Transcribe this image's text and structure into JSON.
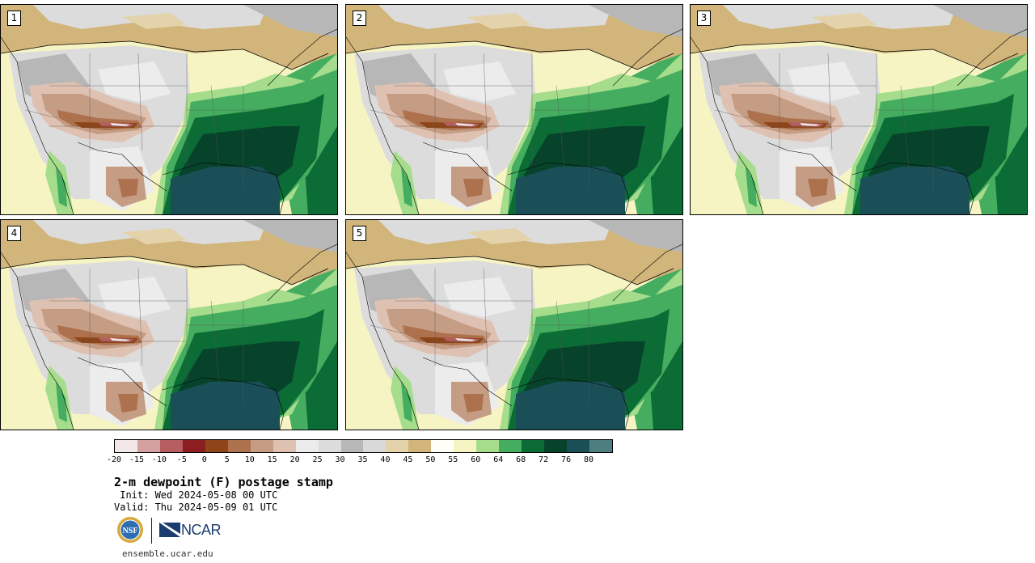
{
  "panels": [
    {
      "number": "1"
    },
    {
      "number": "2"
    },
    {
      "number": "3"
    },
    {
      "number": "4"
    },
    {
      "number": "5"
    }
  ],
  "colorbar": {
    "colors": [
      "#f3e8e8",
      "#d5a0a0",
      "#b55d60",
      "#8c1e22",
      "#8f4517",
      "#ad714e",
      "#c59c84",
      "#dfc1b2",
      "#ececec",
      "#dcdcdc",
      "#b7b7b7",
      "#d9d9d9",
      "#e4d3aa",
      "#d1b57a",
      "#fffff8",
      "#f7f4c4",
      "#a5dd8c",
      "#45ad5f",
      "#0c6c35",
      "#07432a",
      "#1a4f58",
      "#4f7e80"
    ],
    "labels": [
      "-20",
      "-15",
      "-10",
      "-5",
      "0",
      "5",
      "10",
      "15",
      "20",
      "25",
      "30",
      "35",
      "40",
      "45",
      "50",
      "55",
      "60",
      "64",
      "68",
      "72",
      "76",
      "80"
    ]
  },
  "title": "2-m dewpoint (F) postage stamp",
  "init": " Init: Wed 2024-05-08 00 UTC",
  "valid": "Valid: Thu 2024-05-09 01 UTC",
  "logos": {
    "nsf_icon": "nsf-seal",
    "ncar_text": "NCAR"
  },
  "website": "ensemble.ucar.edu"
}
